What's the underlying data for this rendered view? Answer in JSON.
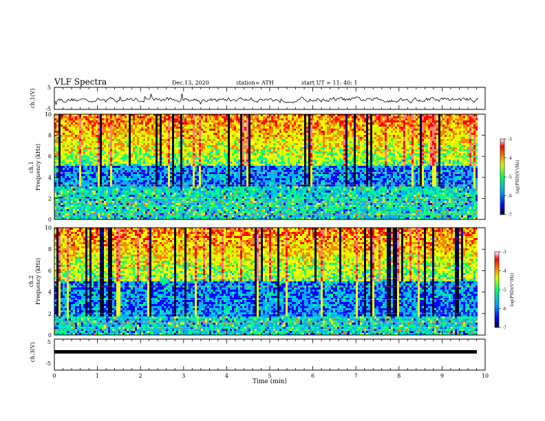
{
  "header": {
    "title": "VLF Spectra",
    "date": "Dec.13, 2020",
    "station": "station= ATH",
    "start": "start UT =  11: 40: 1"
  },
  "colors": {
    "scale": [
      "#000030",
      "#0000ff",
      "#00b0ff",
      "#00ff80",
      "#c0ff00",
      "#ffff00",
      "#ff8000",
      "#ff0000",
      "#ff8080",
      "#ffffff"
    ]
  },
  "chart_data": [
    {
      "type": "line",
      "ylabel": "ch.1(V)",
      "ylim": [
        -5,
        5
      ],
      "yticks": [
        "5",
        "-5"
      ],
      "xlim": [
        0,
        10
      ]
    },
    {
      "type": "heatmap",
      "ylabel_top": "ch.1",
      "ylabel": "Frequency (kHz)",
      "ylim": [
        0,
        10
      ],
      "yticks": [
        "0",
        "2",
        "4",
        "6",
        "8",
        "10"
      ],
      "xlim": [
        0,
        10
      ],
      "data_end_min": 9.85,
      "colorbar": {
        "label": "log(PSD)(V²/Hz)",
        "range": [
          -7,
          -3
        ],
        "ticks": [
          "-3",
          "-4",
          "-5",
          "-6",
          "-7"
        ]
      }
    },
    {
      "type": "heatmap",
      "ylabel_top": "ch.2",
      "ylabel": "Frequency (kHz)",
      "ylim": [
        0,
        10
      ],
      "yticks": [
        "0",
        "2",
        "4",
        "6",
        "8",
        "10"
      ],
      "xlim": [
        0,
        10
      ],
      "data_end_min": 9.85,
      "colorbar": {
        "label": "log(PSD)(V²/Hz)",
        "range": [
          -7,
          -3
        ],
        "ticks": [
          "-3",
          "-4",
          "-5",
          "-6",
          "-7"
        ]
      }
    },
    {
      "type": "line",
      "ylabel": "ch.3(V)",
      "ylim": [
        -5,
        5
      ],
      "yticks": [
        "5",
        "-5"
      ],
      "xlim": [
        0,
        10
      ]
    }
  ],
  "xaxis": {
    "label": "Time (min)",
    "ticks": [
      "0",
      "1",
      "2",
      "3",
      "4",
      "5",
      "6",
      "7",
      "8",
      "9",
      "10"
    ]
  }
}
